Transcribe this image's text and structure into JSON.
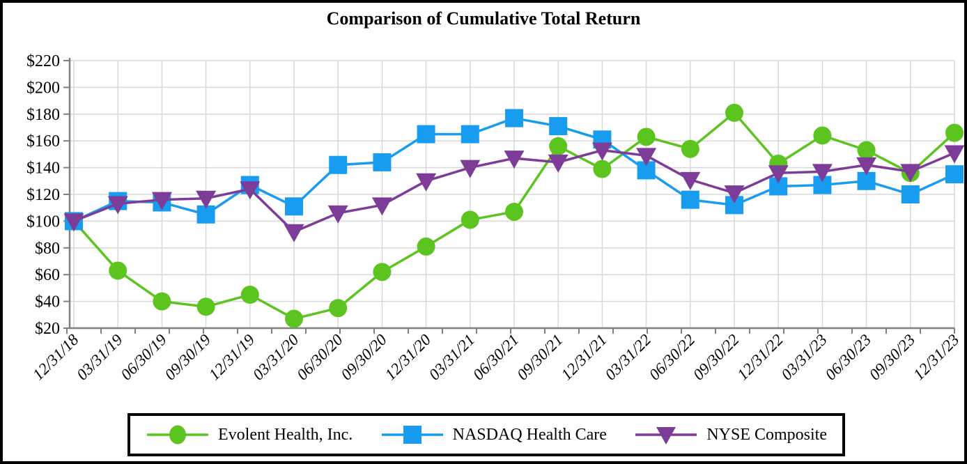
{
  "title": "Comparison of Cumulative Total Return",
  "colors": {
    "background": "#FFFFFF",
    "frame_border": "#000000",
    "gridline": "#D9D9D9",
    "axis": "#808080",
    "text": "#000000",
    "evolent_green": "#5CC41E",
    "nasdaq_blue": "#189CF0",
    "nyse_purple": "#7D3C98"
  },
  "chart_data": {
    "type": "line",
    "title": "Comparison of Cumulative Total Return",
    "x": [
      "12/31/18",
      "03/31/19",
      "06/30/19",
      "09/30/19",
      "12/31/19",
      "03/31/20",
      "06/30/20",
      "09/30/20",
      "12/31/20",
      "03/31/21",
      "06/30/21",
      "09/30/21",
      "12/31/21",
      "03/31/22",
      "06/30/22",
      "09/30/22",
      "12/31/22",
      "03/31/23",
      "06/30/23",
      "09/30/23",
      "12/31/23"
    ],
    "series": [
      {
        "name": "Evolent Health, Inc.",
        "marker": "circle",
        "color": "#5CC41E",
        "values": [
          100,
          63,
          40,
          36,
          45,
          27,
          35,
          62,
          81,
          101,
          107,
          156,
          139,
          163,
          154,
          181,
          143,
          164,
          153,
          136,
          166
        ]
      },
      {
        "name": "NASDAQ Health Care",
        "marker": "square",
        "color": "#189CF0",
        "values": [
          100,
          115,
          114,
          105,
          127,
          111,
          142,
          144,
          165,
          165,
          177,
          171,
          161,
          138,
          116,
          112,
          126,
          127,
          130,
          120,
          135
        ]
      },
      {
        "name": "NYSE Composite",
        "marker": "triangle-down",
        "color": "#7D3C98",
        "values": [
          100,
          113,
          116,
          117,
          124,
          92,
          106,
          112,
          130,
          140,
          147,
          144,
          153,
          149,
          131,
          121,
          136,
          137,
          142,
          137,
          151
        ]
      }
    ],
    "ylim": [
      20,
      220
    ],
    "ytick_step": 20,
    "yticks": [
      "$220",
      "$200",
      "$180",
      "$160",
      "$140",
      "$120",
      "$100",
      "$80",
      "$60",
      "$40",
      "$20"
    ],
    "ylabel": "",
    "xlabel": "",
    "grid": true,
    "legend_position": "bottom"
  }
}
